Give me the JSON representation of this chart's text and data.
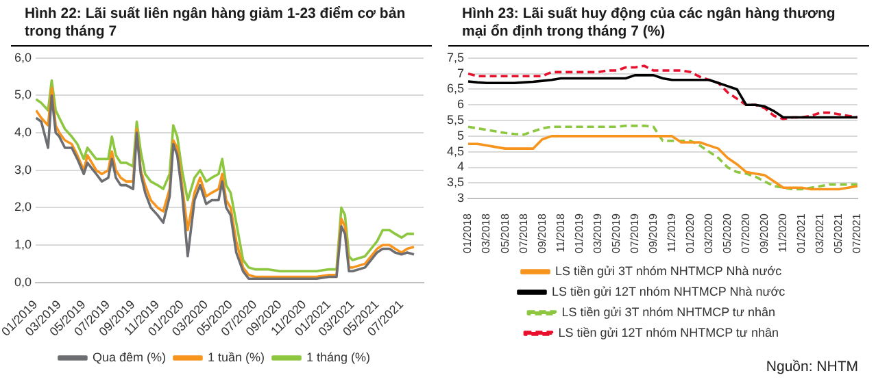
{
  "chart_data": [
    {
      "type": "line",
      "title": "Hình 22: Lãi suất liên ngân hàng giảm 1-23 điểm cơ bản trong tháng 7",
      "x": [
        "2019-01-02",
        "2019-01-15",
        "2019-02-01",
        "2019-02-10",
        "2019-02-20",
        "2019-03-01",
        "2019-03-15",
        "2019-04-01",
        "2019-04-15",
        "2019-05-01",
        "2019-05-10",
        "2019-06-01",
        "2019-06-15",
        "2019-07-01",
        "2019-07-10",
        "2019-07-20",
        "2019-08-01",
        "2019-08-15",
        "2019-09-01",
        "2019-09-10",
        "2019-09-20",
        "2019-10-01",
        "2019-10-15",
        "2019-11-01",
        "2019-11-15",
        "2019-12-01",
        "2019-12-10",
        "2019-12-20",
        "2020-01-01",
        "2020-01-15",
        "2020-02-01",
        "2020-02-15",
        "2020-03-01",
        "2020-03-15",
        "2020-04-01",
        "2020-04-10",
        "2020-04-20",
        "2020-05-01",
        "2020-05-15",
        "2020-06-01",
        "2020-06-15",
        "2020-07-01",
        "2020-08-01",
        "2020-09-01",
        "2020-10-01",
        "2020-11-01",
        "2020-12-01",
        "2021-01-01",
        "2021-01-20",
        "2021-02-01",
        "2021-02-10",
        "2021-02-20",
        "2021-03-01",
        "2021-04-01",
        "2021-05-01",
        "2021-05-15",
        "2021-06-01",
        "2021-06-15",
        "2021-07-01",
        "2021-07-15",
        "2021-08-01"
      ],
      "series": [
        {
          "name": "Qua đêm (%)",
          "color": "#6d6e71",
          "values": [
            4.4,
            4.3,
            3.6,
            5.0,
            4.0,
            3.9,
            3.6,
            3.6,
            3.3,
            2.9,
            3.2,
            2.9,
            2.7,
            2.8,
            3.3,
            2.8,
            2.6,
            2.6,
            2.5,
            4.0,
            2.9,
            2.4,
            2.0,
            1.8,
            1.6,
            2.3,
            3.7,
            3.4,
            2.4,
            0.7,
            2.2,
            2.6,
            2.1,
            2.2,
            2.2,
            2.7,
            2.0,
            1.8,
            0.8,
            0.3,
            0.1,
            0.1,
            0.1,
            0.1,
            0.1,
            0.1,
            0.1,
            0.15,
            0.15,
            1.5,
            1.3,
            0.3,
            0.3,
            0.4,
            0.8,
            0.9,
            0.9,
            0.8,
            0.75,
            0.8,
            0.75
          ]
        },
        {
          "name": "1 tuần (%)",
          "color": "#f7941d",
          "values": [
            4.6,
            4.4,
            4.2,
            5.2,
            4.2,
            4.0,
            3.8,
            3.7,
            3.4,
            3.0,
            3.4,
            3.0,
            2.9,
            3.0,
            3.5,
            3.0,
            2.8,
            2.7,
            2.7,
            4.1,
            3.0,
            2.6,
            2.2,
            2.0,
            1.9,
            2.5,
            3.8,
            3.6,
            2.6,
            1.4,
            2.4,
            2.8,
            2.3,
            2.4,
            2.5,
            2.9,
            2.2,
            2.0,
            1.1,
            0.4,
            0.2,
            0.15,
            0.15,
            0.15,
            0.15,
            0.15,
            0.15,
            0.2,
            0.2,
            1.7,
            1.5,
            0.4,
            0.4,
            0.5,
            0.9,
            1.0,
            1.0,
            0.9,
            0.8,
            0.9,
            0.95
          ]
        },
        {
          "name": "1 tháng (%)",
          "color": "#8dc63f",
          "values": [
            4.9,
            4.8,
            4.6,
            5.4,
            4.6,
            4.4,
            4.1,
            3.9,
            3.7,
            3.3,
            3.6,
            3.3,
            3.3,
            3.3,
            3.9,
            3.4,
            3.2,
            3.2,
            3.1,
            4.3,
            3.5,
            2.9,
            2.7,
            2.6,
            2.5,
            2.9,
            4.2,
            3.9,
            3.0,
            2.2,
            2.8,
            3.0,
            2.7,
            2.8,
            2.9,
            3.3,
            2.6,
            2.4,
            1.6,
            0.6,
            0.4,
            0.35,
            0.35,
            0.3,
            0.3,
            0.3,
            0.3,
            0.35,
            0.35,
            2.0,
            1.8,
            0.7,
            0.6,
            0.7,
            1.1,
            1.4,
            1.4,
            1.3,
            1.2,
            1.3,
            1.3
          ]
        }
      ],
      "xlim": [
        "2019-01-01",
        "2021-08-25"
      ],
      "xticks": [
        {
          "value": "2019-01-01",
          "label": "01/2019"
        },
        {
          "value": "2019-03-01",
          "label": "03/2019"
        },
        {
          "value": "2019-05-01",
          "label": "05/2019"
        },
        {
          "value": "2019-07-01",
          "label": "07/2019"
        },
        {
          "value": "2019-09-01",
          "label": "09/2019"
        },
        {
          "value": "2019-11-01",
          "label": "11/2019"
        },
        {
          "value": "2020-01-01",
          "label": "01/2020"
        },
        {
          "value": "2020-03-01",
          "label": "03/2020"
        },
        {
          "value": "2020-05-01",
          "label": "05/2020"
        },
        {
          "value": "2020-07-01",
          "label": "07/2020"
        },
        {
          "value": "2020-09-01",
          "label": "09/2020"
        },
        {
          "value": "2020-11-01",
          "label": "11/2020"
        },
        {
          "value": "2021-01-01",
          "label": "01/2021"
        },
        {
          "value": "2021-03-01",
          "label": "03/2021"
        },
        {
          "value": "2021-05-01",
          "label": "05/2021"
        },
        {
          "value": "2021-07-01",
          "label": "07/2021"
        }
      ],
      "ylim": [
        0,
        6
      ],
      "yticks": [
        {
          "value": 0,
          "label": "0,0"
        },
        {
          "value": 1,
          "label": "1,0"
        },
        {
          "value": 2,
          "label": "2,0"
        },
        {
          "value": 3,
          "label": "3,0"
        },
        {
          "value": 4,
          "label": "4,0"
        },
        {
          "value": 5,
          "label": "5,0"
        },
        {
          "value": 6,
          "label": "6,0"
        }
      ],
      "grid": "y",
      "legend": "bottom"
    },
    {
      "type": "line",
      "title": "Hình 23: Lãi suất huy động của các ngân hàng thương mại ổn định trong tháng 7 (%)",
      "categories": [
        "01/2018",
        null,
        "03/2018",
        null,
        "05/2018",
        null,
        "07/2018",
        null,
        "09/2018",
        null,
        "11/2018",
        null,
        "01/2019",
        null,
        "03/2019",
        null,
        "05/2019",
        null,
        "07/2019",
        null,
        "09/2019",
        null,
        "11/2019",
        null,
        "01/2020",
        null,
        "03/2020",
        null,
        "05/2020",
        null,
        "07/2020",
        null,
        "09/2020",
        null,
        "11/2020",
        null,
        "01/2021",
        null,
        "03/2021",
        null,
        "05/2021",
        null,
        "07/2021"
      ],
      "series": [
        {
          "name": "LS tiền gửi 3T nhóm NHTMCP Nhà nước",
          "color": "#f7941d",
          "line_style": "solid",
          "values": [
            4.75,
            4.75,
            4.7,
            4.65,
            4.6,
            4.6,
            4.6,
            4.6,
            4.9,
            5.0,
            5.0,
            5.0,
            5.0,
            5.0,
            5.0,
            5.0,
            5.0,
            5.0,
            5.0,
            5.0,
            5.0,
            5.0,
            5.0,
            4.8,
            4.8,
            4.8,
            4.7,
            4.6,
            4.3,
            4.1,
            3.85,
            3.8,
            3.75,
            3.55,
            3.35,
            3.35,
            3.35,
            3.3,
            3.3,
            3.3,
            3.3,
            3.35,
            3.4
          ]
        },
        {
          "name": "LS tiền gửi 12T nhóm NHTMCP Nhà nước",
          "color": "#000000",
          "line_style": "solid",
          "values": [
            6.75,
            6.72,
            6.7,
            6.7,
            6.7,
            6.7,
            6.72,
            6.74,
            6.77,
            6.8,
            6.85,
            6.85,
            6.85,
            6.85,
            6.85,
            6.85,
            6.85,
            6.85,
            6.95,
            6.95,
            6.95,
            6.85,
            6.8,
            6.8,
            6.8,
            6.8,
            6.8,
            6.7,
            6.6,
            6.5,
            6.0,
            6.0,
            5.95,
            5.8,
            5.6,
            5.6,
            5.6,
            5.6,
            5.6,
            5.6,
            5.6,
            5.6,
            5.6
          ]
        },
        {
          "name": "LS tiền gửi 3T nhóm NHTMCP tư nhân",
          "color": "#8dc63f",
          "line_style": "dashed",
          "values": [
            5.3,
            5.25,
            5.2,
            5.15,
            5.1,
            5.07,
            5.05,
            5.15,
            5.25,
            5.3,
            5.3,
            5.3,
            5.3,
            5.3,
            5.3,
            5.3,
            5.3,
            5.33,
            5.33,
            5.33,
            5.3,
            4.85,
            4.85,
            4.85,
            4.85,
            4.7,
            4.5,
            4.3,
            4.0,
            3.85,
            3.8,
            3.7,
            3.55,
            3.4,
            3.35,
            3.3,
            3.3,
            3.35,
            3.4,
            3.45,
            3.45,
            3.45,
            3.45
          ]
        },
        {
          "name": "LS tiền gửi 12T nhóm NHTMCP tư nhân",
          "color": "#e8112d",
          "line_style": "dashed",
          "values": [
            7.0,
            6.92,
            6.92,
            6.92,
            6.92,
            6.92,
            6.92,
            6.92,
            6.92,
            7.05,
            7.05,
            7.05,
            7.05,
            7.05,
            7.05,
            7.1,
            7.1,
            7.2,
            7.2,
            7.25,
            7.1,
            7.1,
            7.1,
            7.1,
            7.05,
            6.9,
            6.8,
            6.7,
            6.4,
            6.2,
            6.0,
            6.0,
            5.9,
            5.65,
            5.55,
            5.6,
            5.6,
            5.65,
            5.75,
            5.75,
            5.7,
            5.65,
            5.6
          ]
        }
      ],
      "ylim": [
        3,
        7.5
      ],
      "yticks": [
        3,
        {
          "value": 3.5,
          "label": "3,5"
        },
        4,
        {
          "value": 4.5,
          "label": "4,5"
        },
        5,
        {
          "value": 5.5,
          "label": "5,5"
        },
        6,
        {
          "value": 6.5,
          "label": "6,5"
        },
        7,
        {
          "value": 7.5,
          "label": "7,5"
        }
      ],
      "grid": "y",
      "legend": "bottom",
      "annotations": [
        "Nguồn: NHTM"
      ]
    }
  ]
}
